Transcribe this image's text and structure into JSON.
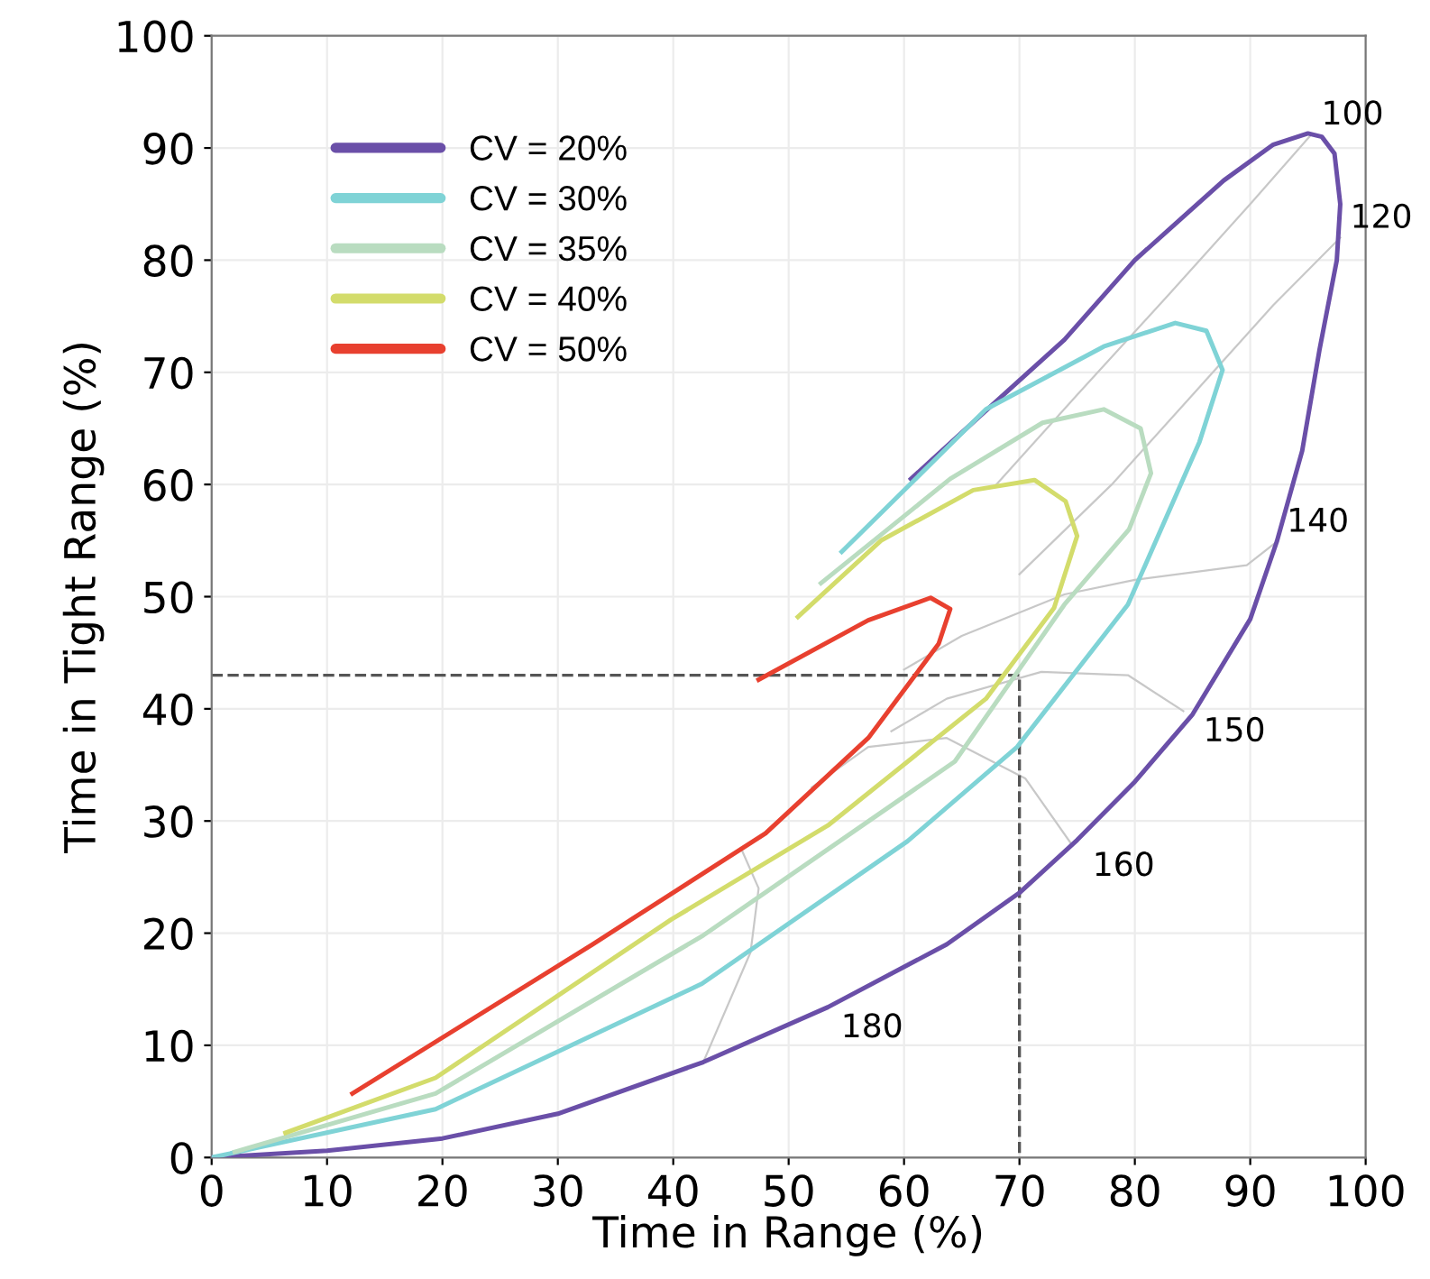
{
  "chart_data": {
    "type": "line",
    "xlabel": "Time in Range (%)",
    "ylabel": "Time in Tight Range (%)",
    "xlim": [
      0,
      100
    ],
    "ylim": [
      0,
      100
    ],
    "xticks": [
      0,
      10,
      20,
      30,
      40,
      50,
      60,
      70,
      80,
      90,
      100
    ],
    "yticks": [
      0,
      10,
      20,
      30,
      40,
      50,
      60,
      70,
      80,
      90,
      100
    ],
    "grid": true,
    "legend": "top left",
    "line_style": "solid",
    "marker": "none",
    "series": [
      {
        "name": "CV = 20%",
        "color": "#6a4fa8",
        "x": [
          0,
          10,
          20,
          30,
          42.6,
          53.4,
          63.7,
          70,
          75,
          80,
          85,
          90,
          92.3,
          94.5,
          96,
          97.5,
          97.8,
          97.3,
          96.2,
          95,
          92,
          87.7,
          80,
          73.9,
          67,
          60.6
        ],
        "values": [
          0,
          0.6,
          1.7,
          3.9,
          8.5,
          13.4,
          19,
          23.6,
          28.3,
          33.5,
          39.5,
          48,
          54.9,
          63,
          72,
          80,
          85,
          89.5,
          91,
          91.3,
          90.3,
          87.1,
          80,
          72.9,
          66.5,
          60.5
        ]
      },
      {
        "name": "CV = 30%",
        "color": "#7fd3d6",
        "x": [
          0,
          19.4,
          42.5,
          60.3,
          69.8,
          79.4,
          85.6,
          87.6,
          86.2,
          83.5,
          77.3,
          67.1,
          54.6
        ],
        "values": [
          0,
          4.3,
          15.5,
          28.2,
          36.6,
          49.3,
          63.8,
          70.2,
          73.7,
          74.4,
          72.3,
          66.7,
          54
        ]
      },
      {
        "name": "CV = 35%",
        "color": "#b9dcc0",
        "x": [
          2,
          19.4,
          42.6,
          64.4,
          73.9,
          79.5,
          81.4,
          80.5,
          77.3,
          72,
          64,
          52.8
        ],
        "values": [
          0.5,
          5.7,
          19.8,
          35.3,
          49.3,
          56,
          61,
          65,
          66.7,
          65.5,
          60.5,
          51.2
        ]
      },
      {
        "name": "CV = 40%",
        "color": "#d3dc6b",
        "x": [
          6.4,
          19.4,
          39.8,
          53.4,
          67.1,
          73,
          75,
          74,
          71.3,
          66,
          58,
          50.8
        ],
        "values": [
          2.2,
          7.1,
          21.2,
          29.6,
          40.9,
          49,
          55.4,
          58.5,
          60.4,
          59.5,
          55,
          48.2
        ]
      },
      {
        "name": "CV = 50%",
        "color": "#e8402f",
        "x": [
          12.2,
          33,
          48,
          56.9,
          63,
          64,
          62.3,
          56.9,
          47.4
        ],
        "values": [
          5.7,
          19,
          28.9,
          37.4,
          45.8,
          48.9,
          49.9,
          47.9,
          42.6
        ]
      },
      {
        "color": "#c8c8c8",
        "x": [
          95.3,
          90,
          83,
          75,
          68
        ],
        "values": [
          91.2,
          85,
          77,
          68,
          60
        ]
      },
      {
        "color": "#c8c8c8",
        "x": [
          97.8,
          92,
          85,
          78,
          70
        ],
        "values": [
          82,
          76,
          68,
          60,
          52
        ]
      },
      {
        "color": "#c8c8c8",
        "x": [
          92.3,
          89.7,
          80,
          73.9,
          65,
          60
        ],
        "values": [
          54.9,
          52.8,
          51.5,
          50.2,
          46.5,
          43.5
        ]
      },
      {
        "color": "#c8c8c8",
        "x": [
          84.2,
          79.4,
          71.9,
          63.7,
          58.9
        ],
        "values": [
          39.8,
          43,
          43.3,
          40.9,
          38
        ]
      },
      {
        "color": "#c8c8c8",
        "x": [
          74.6,
          70.5,
          63.7,
          56.9,
          52
        ],
        "values": [
          27.8,
          33.8,
          37.4,
          36.6,
          33
        ]
      },
      {
        "color": "#c8c8c8",
        "x": [
          42.6,
          46.7,
          47.4,
          45.9
        ],
        "values": [
          8.5,
          18.3,
          24,
          27.5
        ]
      },
      {
        "color": "#555555",
        "line_style": "dashed",
        "x": [
          0,
          70,
          70
        ],
        "values": [
          43,
          43,
          0
        ]
      }
    ],
    "annotations": [
      {
        "text": "100",
        "x": 95.3,
        "y": 91.2
      },
      {
        "text": "120",
        "x": 97.8,
        "y": 82
      },
      {
        "text": "140",
        "x": 92.3,
        "y": 54.9
      },
      {
        "text": "150",
        "x": 84.2,
        "y": 39.8
      },
      {
        "text": "160",
        "x": 74.6,
        "y": 27.8
      },
      {
        "text": "180",
        "x": 52.8,
        "y": 13.4
      }
    ]
  }
}
